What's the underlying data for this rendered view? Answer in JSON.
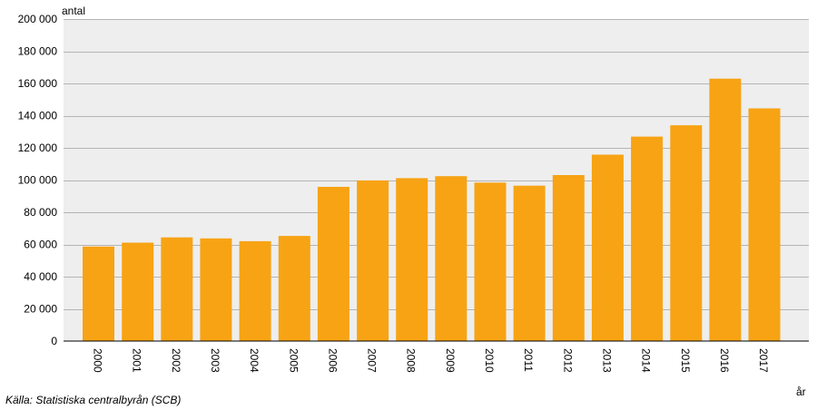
{
  "chart_data": {
    "type": "bar",
    "ylabel": "antal",
    "xlabel": "år",
    "categories": [
      "2000",
      "2001",
      "2002",
      "2003",
      "2004",
      "2005",
      "2006",
      "2007",
      "2008",
      "2009",
      "2010",
      "2011",
      "2012",
      "2013",
      "2014",
      "2015",
      "2016",
      "2017"
    ],
    "values": [
      58700,
      61100,
      64400,
      63800,
      62000,
      65300,
      95800,
      99800,
      101200,
      102400,
      98400,
      96500,
      103100,
      115800,
      127000,
      134000,
      163000,
      144500
    ],
    "ylim": [
      0,
      200000
    ],
    "yticks": [
      0,
      20000,
      40000,
      60000,
      80000,
      100000,
      120000,
      140000,
      160000,
      180000,
      200000
    ],
    "ytick_labels": [
      "0",
      "20 000",
      "40 000",
      "60 000",
      "80 000",
      "100 000",
      "120 000",
      "140 000",
      "160 000",
      "180 000",
      "200 000"
    ],
    "grid": true,
    "colors": {
      "bar": "#f7a314",
      "plot_background": "#eeeeee",
      "gridline": "#b4b4b4"
    }
  },
  "source": "Källa: Statistiska centralbyrån (SCB)"
}
